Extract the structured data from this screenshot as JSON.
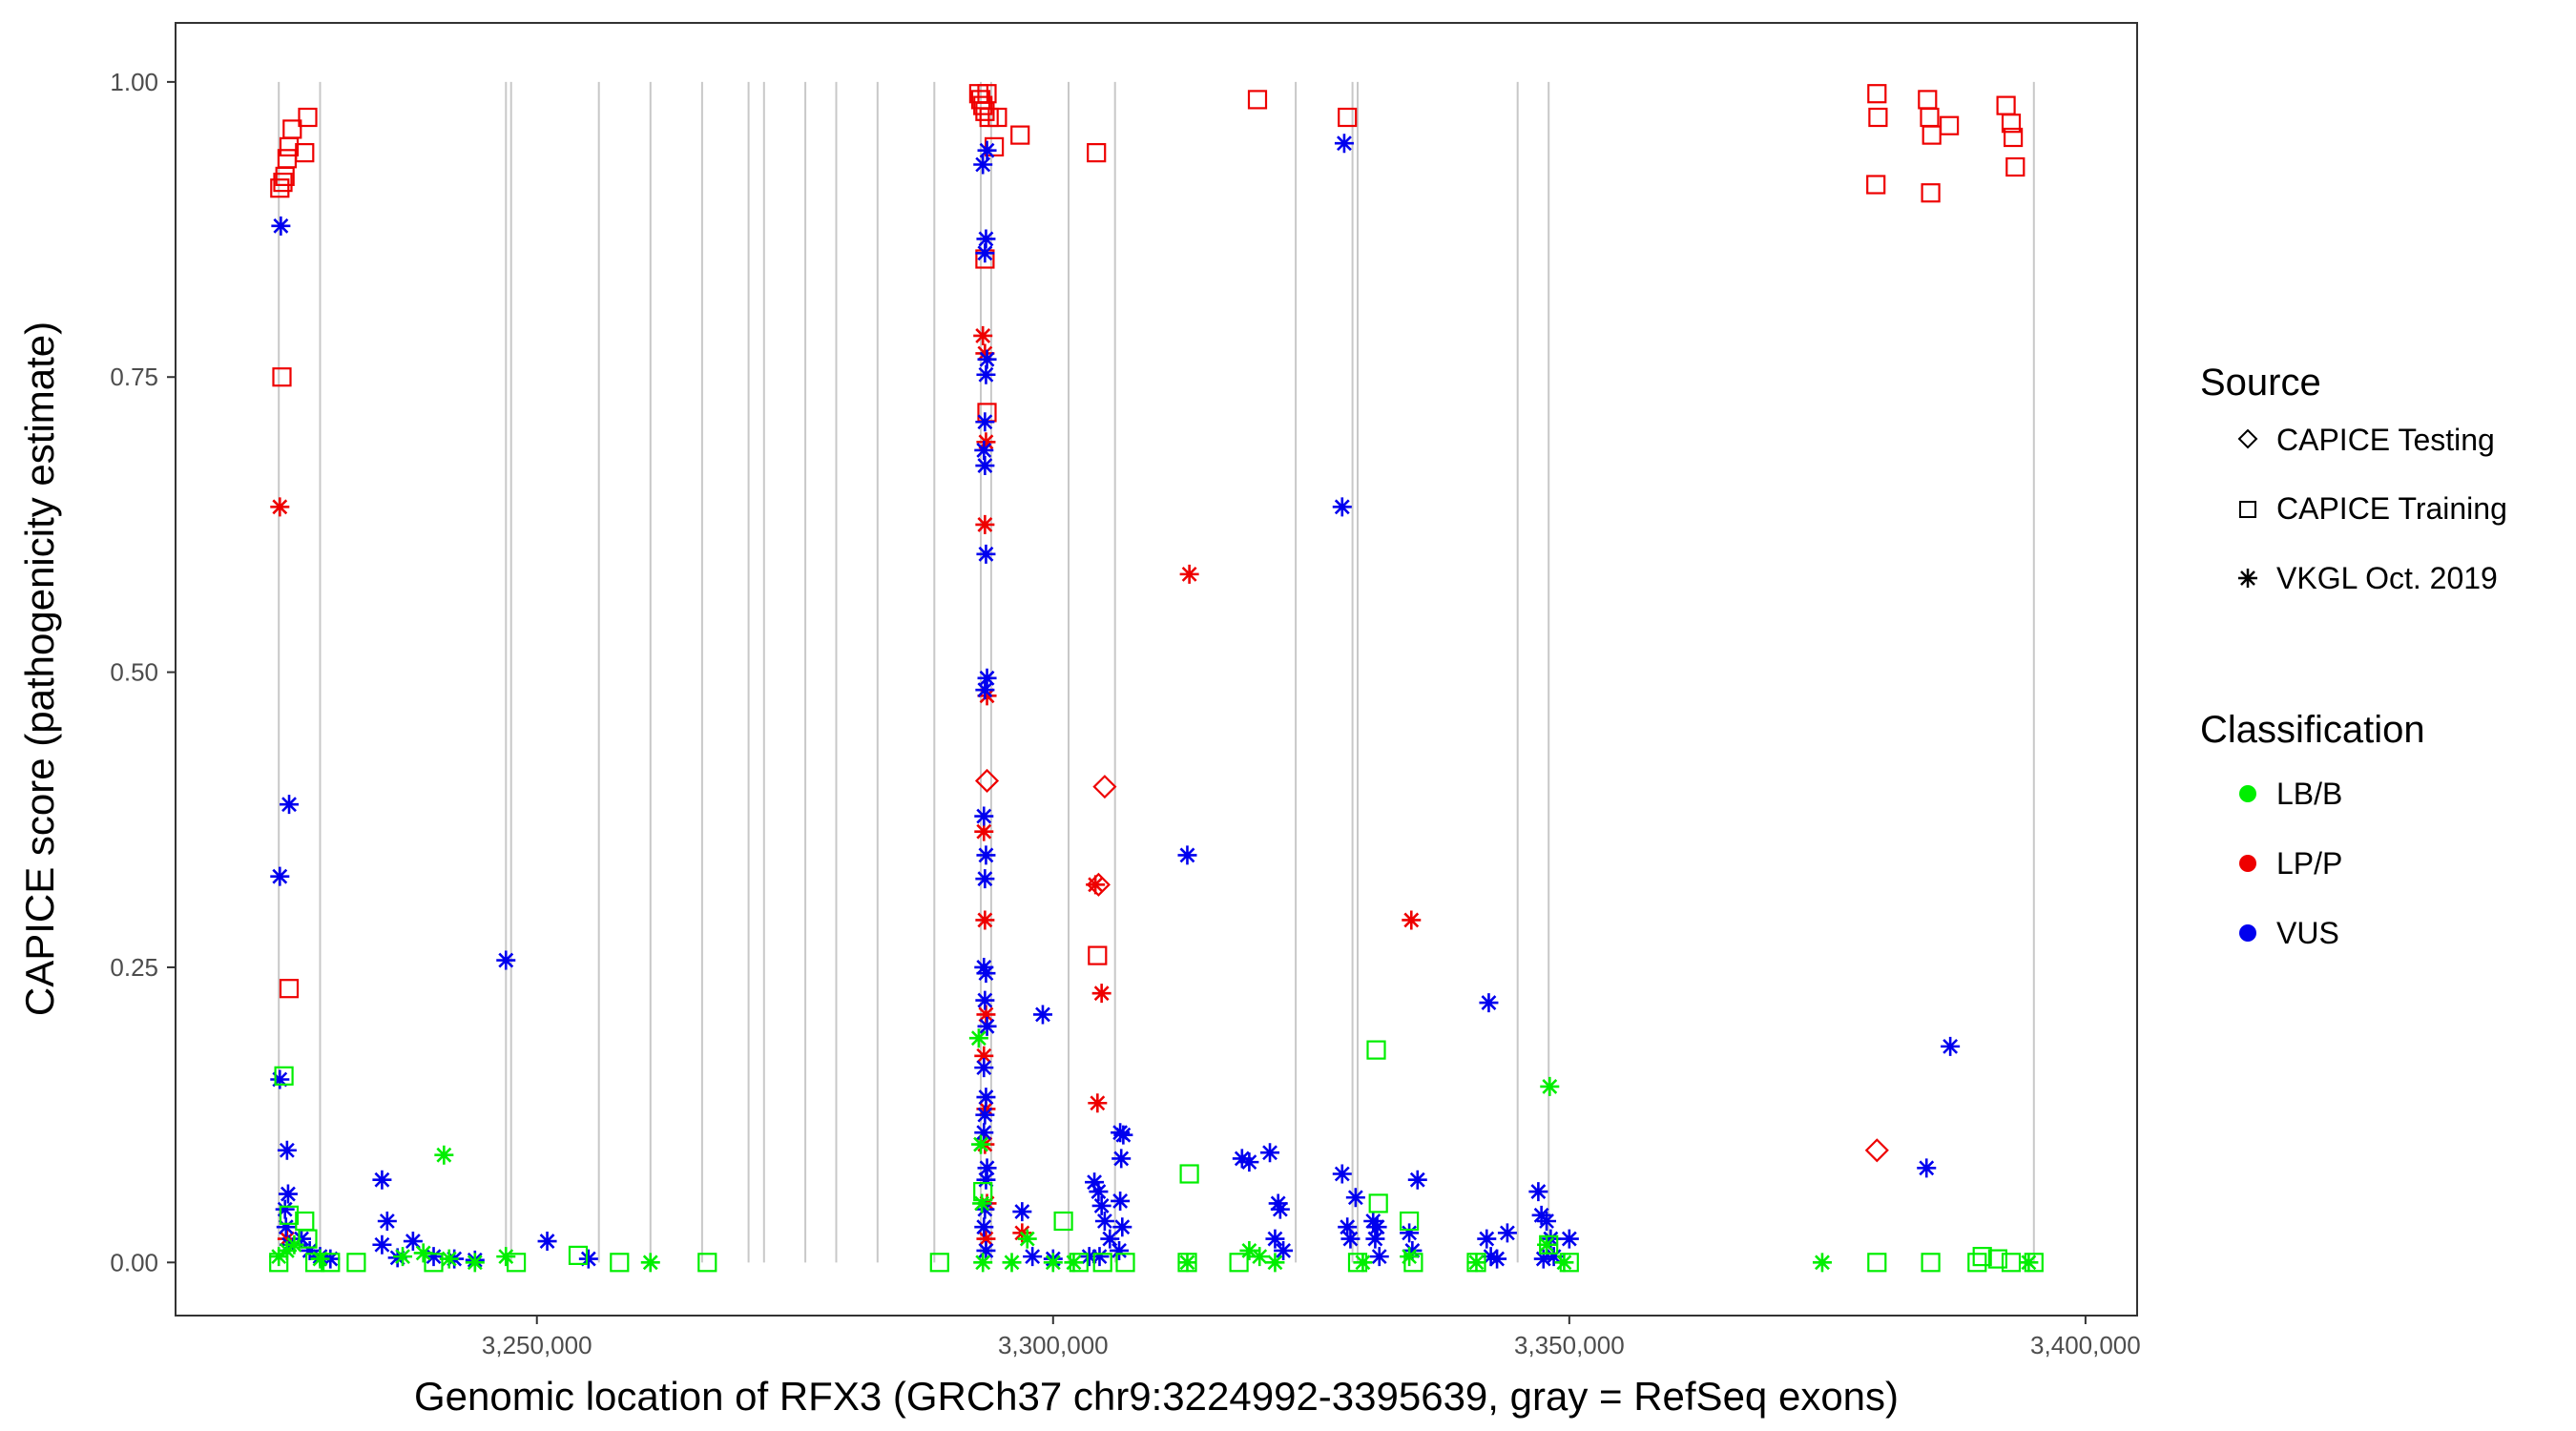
{
  "chart_data": {
    "type": "scatter",
    "xlabel": "Genomic location of RFX3 (GRCh37 chr9:3224992-3395639, gray = RefSeq exons)",
    "ylabel": "CAPICE score (pathogenicity estimate)",
    "xlim": [
      3215000,
      3405000
    ],
    "ylim": [
      -0.045,
      1.05
    ],
    "x_ticks": [
      3250000,
      3300000,
      3350000,
      3400000
    ],
    "x_tick_labels": [
      "3,250,000",
      "3,300,000",
      "3,350,000",
      "3,400,000"
    ],
    "y_ticks": [
      0,
      0.25,
      0.5,
      0.75,
      1
    ],
    "y_tick_labels": [
      "0.00",
      "0.25",
      "0.50",
      "0.75",
      "1.00"
    ],
    "exon_positions": [
      3225000,
      3229000,
      3247000,
      3247500,
      3256000,
      3261000,
      3266000,
      3270500,
      3272000,
      3276000,
      3279000,
      3283000,
      3288500,
      3293000,
      3294000,
      3301500,
      3306000,
      3323500,
      3329000,
      3329500,
      3345000,
      3348000,
      3395000
    ],
    "colors": {
      "LB/B": "#00ee00",
      "LP/P": "#ee0000",
      "VUS": "#0000ee",
      "exon": "#c8c8c8"
    },
    "legend": {
      "source_title": "Source",
      "sources": [
        "CAPICE Testing",
        "CAPICE Training",
        "VKGL Oct. 2019"
      ],
      "classification_title": "Classification",
      "classifications": [
        "LB/B",
        "LP/P",
        "VUS"
      ]
    },
    "series": [
      {
        "name": "LP/P · CAPICE Training",
        "source": "CAPICE Training",
        "class": "LP/P",
        "points": [
          [
            3225100,
            0.91
          ],
          [
            3225400,
            0.915
          ],
          [
            3225600,
            0.92
          ],
          [
            3225800,
            0.935
          ],
          [
            3226000,
            0.945
          ],
          [
            3226300,
            0.96
          ],
          [
            3227500,
            0.94
          ],
          [
            3227800,
            0.97
          ],
          [
            3225300,
            0.75
          ],
          [
            3226000,
            0.232
          ],
          [
            3292800,
            0.99
          ],
          [
            3293000,
            0.985
          ],
          [
            3293200,
            0.98
          ],
          [
            3293400,
            0.975
          ],
          [
            3293600,
            0.99
          ],
          [
            3293800,
            0.97
          ],
          [
            3294300,
            0.945
          ],
          [
            3294600,
            0.97
          ],
          [
            3296800,
            0.955
          ],
          [
            3293400,
            0.85
          ],
          [
            3293600,
            0.72
          ],
          [
            3304200,
            0.94
          ],
          [
            3304300,
            0.26
          ],
          [
            3319800,
            0.985
          ],
          [
            3328500,
            0.97
          ],
          [
            3379800,
            0.99
          ],
          [
            3379900,
            0.97
          ],
          [
            3379700,
            0.913
          ],
          [
            3384700,
            0.985
          ],
          [
            3384900,
            0.97
          ],
          [
            3385100,
            0.955
          ],
          [
            3386800,
            0.963
          ],
          [
            3385000,
            0.906
          ],
          [
            3392300,
            0.98
          ],
          [
            3392800,
            0.965
          ],
          [
            3393000,
            0.953
          ],
          [
            3393200,
            0.928
          ]
        ]
      },
      {
        "name": "LP/P · VKGL Oct. 2019",
        "source": "VKGL Oct. 2019",
        "class": "LP/P",
        "points": [
          [
            3225100,
            0.64
          ],
          [
            3225800,
            0.02
          ],
          [
            3293200,
            0.785
          ],
          [
            3293400,
            0.77
          ],
          [
            3293500,
            0.695
          ],
          [
            3293400,
            0.625
          ],
          [
            3293600,
            0.48
          ],
          [
            3293300,
            0.365
          ],
          [
            3293400,
            0.29
          ],
          [
            3293500,
            0.21
          ],
          [
            3293300,
            0.175
          ],
          [
            3293500,
            0.13
          ],
          [
            3293400,
            0.1
          ],
          [
            3293600,
            0.05
          ],
          [
            3293500,
            0.02
          ],
          [
            3297000,
            0.025
          ],
          [
            3304100,
            0.32
          ],
          [
            3304700,
            0.228
          ],
          [
            3304300,
            0.135
          ],
          [
            3313200,
            0.583
          ],
          [
            3334700,
            0.29
          ]
        ]
      },
      {
        "name": "LP/P · CAPICE Testing",
        "source": "CAPICE Testing",
        "class": "LP/P",
        "points": [
          [
            3293600,
            0.408
          ],
          [
            3305000,
            0.403
          ],
          [
            3304400,
            0.32
          ],
          [
            3379800,
            0.095
          ]
        ]
      },
      {
        "name": "VUS · VKGL Oct. 2019",
        "source": "VKGL Oct. 2019",
        "class": "VUS",
        "points": [
          [
            3225200,
            0.878
          ],
          [
            3226000,
            0.388
          ],
          [
            3225100,
            0.327
          ],
          [
            3225100,
            0.155
          ],
          [
            3225800,
            0.095
          ],
          [
            3225900,
            0.058
          ],
          [
            3225600,
            0.045
          ],
          [
            3225700,
            0.03
          ],
          [
            3226000,
            0.015
          ],
          [
            3227200,
            0.02
          ],
          [
            3228000,
            0.01
          ],
          [
            3229000,
            0.005
          ],
          [
            3230000,
            0.003
          ],
          [
            3235000,
            0.07
          ],
          [
            3235500,
            0.035
          ],
          [
            3235000,
            0.015
          ],
          [
            3238000,
            0.018
          ],
          [
            3240000,
            0.005
          ],
          [
            3242000,
            0.003
          ],
          [
            3244000,
            0.002
          ],
          [
            3236500,
            0.004
          ],
          [
            3247000,
            0.256
          ],
          [
            3251000,
            0.018
          ],
          [
            3255000,
            0.003
          ],
          [
            3293200,
            0.93
          ],
          [
            3293600,
            0.942
          ],
          [
            3293500,
            0.867
          ],
          [
            3293400,
            0.855
          ],
          [
            3293600,
            0.765
          ],
          [
            3293500,
            0.752
          ],
          [
            3293400,
            0.712
          ],
          [
            3293300,
            0.688
          ],
          [
            3293400,
            0.675
          ],
          [
            3293500,
            0.6
          ],
          [
            3293600,
            0.495
          ],
          [
            3293400,
            0.485
          ],
          [
            3293300,
            0.378
          ],
          [
            3293500,
            0.345
          ],
          [
            3293400,
            0.325
          ],
          [
            3293300,
            0.25
          ],
          [
            3293500,
            0.245
          ],
          [
            3293400,
            0.222
          ],
          [
            3293600,
            0.2
          ],
          [
            3293300,
            0.165
          ],
          [
            3293500,
            0.14
          ],
          [
            3293400,
            0.125
          ],
          [
            3293300,
            0.11
          ],
          [
            3293600,
            0.08
          ],
          [
            3293500,
            0.07
          ],
          [
            3293400,
            0.045
          ],
          [
            3293300,
            0.03
          ],
          [
            3293500,
            0.01
          ],
          [
            3297000,
            0.043
          ],
          [
            3299000,
            0.21
          ],
          [
            3298000,
            0.005
          ],
          [
            3300000,
            0.003
          ],
          [
            3303500,
            0.005
          ],
          [
            3304000,
            0.068
          ],
          [
            3304400,
            0.06
          ],
          [
            3304700,
            0.048
          ],
          [
            3305000,
            0.035
          ],
          [
            3305500,
            0.02
          ],
          [
            3306500,
            0.11
          ],
          [
            3306800,
            0.108
          ],
          [
            3306600,
            0.088
          ],
          [
            3306500,
            0.052
          ],
          [
            3306700,
            0.03
          ],
          [
            3306400,
            0.01
          ],
          [
            3304500,
            0.005
          ],
          [
            3313000,
            0.345
          ],
          [
            3318300,
            0.088
          ],
          [
            3319000,
            0.085
          ],
          [
            3321000,
            0.093
          ],
          [
            3321800,
            0.05
          ],
          [
            3322000,
            0.045
          ],
          [
            3321500,
            0.02
          ],
          [
            3322300,
            0.01
          ],
          [
            3328200,
            0.948
          ],
          [
            3328000,
            0.64
          ],
          [
            3328000,
            0.075
          ],
          [
            3329300,
            0.055
          ],
          [
            3328500,
            0.03
          ],
          [
            3328800,
            0.02
          ],
          [
            3331000,
            0.035
          ],
          [
            3331400,
            0.03
          ],
          [
            3331200,
            0.02
          ],
          [
            3331600,
            0.005
          ],
          [
            3334500,
            0.025
          ],
          [
            3335300,
            0.07
          ],
          [
            3334800,
            0.01
          ],
          [
            3342200,
            0.22
          ],
          [
            3342000,
            0.02
          ],
          [
            3344000,
            0.025
          ],
          [
            3342400,
            0.005
          ],
          [
            3343000,
            0.003
          ],
          [
            3347000,
            0.06
          ],
          [
            3347300,
            0.04
          ],
          [
            3347800,
            0.035
          ],
          [
            3348200,
            0.02
          ],
          [
            3350000,
            0.02
          ],
          [
            3348500,
            0.005
          ],
          [
            3347500,
            0.003
          ],
          [
            3384600,
            0.08
          ],
          [
            3386900,
            0.183
          ]
        ]
      },
      {
        "name": "LB/B · CAPICE Training",
        "source": "CAPICE Training",
        "class": "LB/B",
        "points": [
          [
            3225000,
            0.0
          ],
          [
            3225500,
            0.158
          ],
          [
            3226000,
            0.04
          ],
          [
            3227500,
            0.035
          ],
          [
            3227800,
            0.02
          ],
          [
            3228500,
            0.0
          ],
          [
            3230000,
            0.0
          ],
          [
            3232500,
            0.0
          ],
          [
            3240000,
            0.0
          ],
          [
            3248000,
            0.0
          ],
          [
            3254000,
            0.006
          ],
          [
            3258000,
            0.0
          ],
          [
            3266500,
            0.0
          ],
          [
            3289000,
            0.0
          ],
          [
            3293200,
            0.06
          ],
          [
            3301000,
            0.035
          ],
          [
            3302500,
            0.0
          ],
          [
            3304800,
            0.0
          ],
          [
            3307000,
            0.0
          ],
          [
            3313200,
            0.075
          ],
          [
            3313000,
            0.0
          ],
          [
            3318000,
            0.0
          ],
          [
            3331300,
            0.18
          ],
          [
            3331500,
            0.05
          ],
          [
            3329500,
            0.0
          ],
          [
            3334500,
            0.035
          ],
          [
            3334900,
            0.0
          ],
          [
            3341000,
            0.0
          ],
          [
            3348000,
            0.015
          ],
          [
            3350000,
            0.0
          ],
          [
            3379800,
            0.0
          ],
          [
            3385000,
            0.0
          ],
          [
            3389500,
            0.0
          ],
          [
            3390000,
            0.005
          ],
          [
            3391500,
            0.003
          ],
          [
            3392800,
            0.0
          ],
          [
            3395000,
            0.0
          ]
        ]
      },
      {
        "name": "LB/B · VKGL Oct. 2019",
        "source": "VKGL Oct. 2019",
        "class": "LB/B",
        "points": [
          [
            3225000,
            0.005
          ],
          [
            3225800,
            0.01
          ],
          [
            3226500,
            0.015
          ],
          [
            3229000,
            0.003
          ],
          [
            3237000,
            0.005
          ],
          [
            3239000,
            0.008
          ],
          [
            3241000,
            0.091
          ],
          [
            3241500,
            0.003
          ],
          [
            3244000,
            0.0
          ],
          [
            3247000,
            0.005
          ],
          [
            3261000,
            0.0
          ],
          [
            3292800,
            0.19
          ],
          [
            3293000,
            0.1
          ],
          [
            3293100,
            0.05
          ],
          [
            3293200,
            0.0
          ],
          [
            3296000,
            0.0
          ],
          [
            3297500,
            0.02
          ],
          [
            3300000,
            0.0
          ],
          [
            3302000,
            0.0
          ],
          [
            3313000,
            0.0
          ],
          [
            3319000,
            0.01
          ],
          [
            3320000,
            0.005
          ],
          [
            3321500,
            0.0
          ],
          [
            3330000,
            0.0
          ],
          [
            3334500,
            0.005
          ],
          [
            3341000,
            0.0
          ],
          [
            3347800,
            0.015
          ],
          [
            3348100,
            0.149
          ],
          [
            3349500,
            0.0
          ],
          [
            3374500,
            0.0
          ],
          [
            3394500,
            0.0
          ]
        ]
      }
    ]
  }
}
